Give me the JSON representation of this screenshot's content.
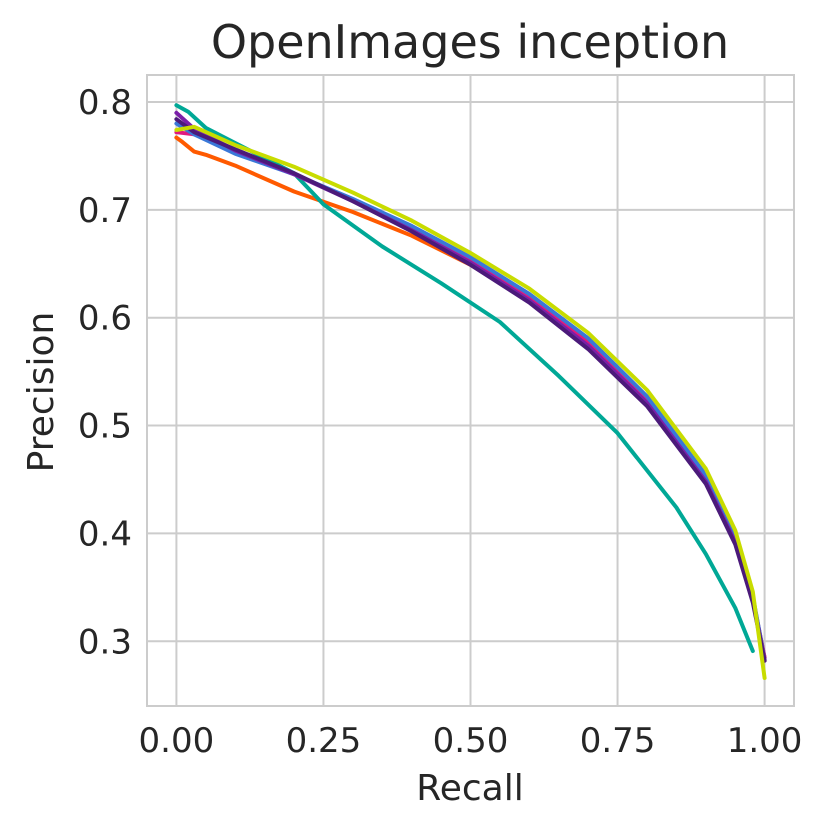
{
  "chart_data": {
    "type": "line",
    "title": "OpenImages inception",
    "xlabel": "Recall",
    "ylabel": "Precision",
    "xlim": [
      -0.05,
      1.05
    ],
    "ylim": [
      0.24,
      0.825
    ],
    "grid": true,
    "x_ticks": [
      0.0,
      0.25,
      0.5,
      0.75,
      1.0
    ],
    "x_tick_labels": [
      "0.00",
      "0.25",
      "0.50",
      "0.75",
      "1.00"
    ],
    "y_ticks": [
      0.3,
      0.4,
      0.5,
      0.6,
      0.7,
      0.8
    ],
    "y_tick_labels": [
      "0.3",
      "0.4",
      "0.5",
      "0.6",
      "0.7",
      "0.8"
    ],
    "series": [
      {
        "color": "#ff5a00",
        "points": [
          [
            0.0,
            0.767
          ],
          [
            0.01,
            0.763
          ],
          [
            0.03,
            0.754
          ],
          [
            0.05,
            0.751
          ],
          [
            0.1,
            0.741
          ],
          [
            0.2,
            0.717
          ],
          [
            0.3,
            0.698
          ],
          [
            0.4,
            0.676
          ],
          [
            0.5,
            0.649
          ],
          [
            0.6,
            0.616
          ],
          [
            0.7,
            0.574
          ],
          [
            0.8,
            0.521
          ],
          [
            0.9,
            0.448
          ],
          [
            0.95,
            0.392
          ],
          [
            0.98,
            0.338
          ],
          [
            1.0,
            0.285
          ]
        ]
      },
      {
        "color": "#00a896",
        "points": [
          [
            0.0,
            0.797
          ],
          [
            0.02,
            0.791
          ],
          [
            0.05,
            0.776
          ],
          [
            0.1,
            0.762
          ],
          [
            0.2,
            0.734
          ],
          [
            0.25,
            0.705
          ],
          [
            0.35,
            0.666
          ],
          [
            0.45,
            0.632
          ],
          [
            0.55,
            0.596
          ],
          [
            0.65,
            0.546
          ],
          [
            0.75,
            0.493
          ],
          [
            0.85,
            0.424
          ],
          [
            0.9,
            0.381
          ],
          [
            0.95,
            0.331
          ],
          [
            0.98,
            0.291
          ]
        ]
      },
      {
        "color": "#e0197d",
        "points": [
          [
            0.0,
            0.772
          ],
          [
            0.03,
            0.77
          ],
          [
            0.1,
            0.754
          ],
          [
            0.2,
            0.733
          ],
          [
            0.3,
            0.709
          ],
          [
            0.4,
            0.683
          ],
          [
            0.5,
            0.654
          ],
          [
            0.6,
            0.62
          ],
          [
            0.7,
            0.578
          ],
          [
            0.8,
            0.525
          ],
          [
            0.9,
            0.451
          ],
          [
            0.95,
            0.395
          ],
          [
            0.98,
            0.34
          ],
          [
            1.0,
            0.285
          ]
        ]
      },
      {
        "color": "#3a78d8",
        "points": [
          [
            0.0,
            0.78
          ],
          [
            0.03,
            0.77
          ],
          [
            0.1,
            0.752
          ],
          [
            0.2,
            0.733
          ],
          [
            0.3,
            0.71
          ],
          [
            0.4,
            0.685
          ],
          [
            0.5,
            0.656
          ],
          [
            0.6,
            0.622
          ],
          [
            0.7,
            0.581
          ],
          [
            0.8,
            0.527
          ],
          [
            0.9,
            0.454
          ],
          [
            0.95,
            0.397
          ],
          [
            0.98,
            0.342
          ],
          [
            1.0,
            0.283
          ]
        ]
      },
      {
        "color": "#7a1fa8",
        "points": [
          [
            0.0,
            0.79
          ],
          [
            0.03,
            0.775
          ],
          [
            0.1,
            0.755
          ],
          [
            0.2,
            0.733
          ],
          [
            0.3,
            0.708
          ],
          [
            0.4,
            0.681
          ],
          [
            0.5,
            0.651
          ],
          [
            0.6,
            0.616
          ],
          [
            0.7,
            0.574
          ],
          [
            0.8,
            0.521
          ],
          [
            0.9,
            0.448
          ],
          [
            0.95,
            0.392
          ],
          [
            0.98,
            0.338
          ],
          [
            1.0,
            0.282
          ]
        ]
      },
      {
        "color": "#4b1a7a",
        "points": [
          [
            0.0,
            0.784
          ],
          [
            0.03,
            0.772
          ],
          [
            0.1,
            0.756
          ],
          [
            0.2,
            0.734
          ],
          [
            0.3,
            0.708
          ],
          [
            0.4,
            0.68
          ],
          [
            0.5,
            0.649
          ],
          [
            0.6,
            0.614
          ],
          [
            0.7,
            0.571
          ],
          [
            0.8,
            0.518
          ],
          [
            0.9,
            0.446
          ],
          [
            0.95,
            0.39
          ],
          [
            0.98,
            0.336
          ],
          [
            1.0,
            0.282
          ]
        ]
      },
      {
        "color": "#c8dc00",
        "points": [
          [
            0.0,
            0.774
          ],
          [
            0.03,
            0.777
          ],
          [
            0.1,
            0.76
          ],
          [
            0.2,
            0.74
          ],
          [
            0.3,
            0.716
          ],
          [
            0.4,
            0.69
          ],
          [
            0.5,
            0.66
          ],
          [
            0.6,
            0.627
          ],
          [
            0.7,
            0.586
          ],
          [
            0.8,
            0.533
          ],
          [
            0.9,
            0.46
          ],
          [
            0.95,
            0.403
          ],
          [
            0.98,
            0.346
          ],
          [
            1.0,
            0.266
          ]
        ]
      }
    ]
  }
}
